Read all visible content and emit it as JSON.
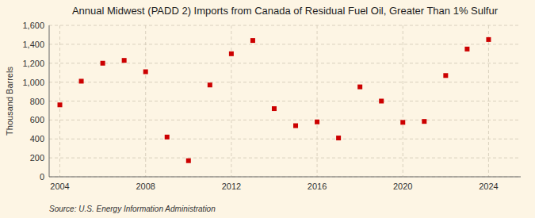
{
  "chart_data": {
    "type": "scatter",
    "title": "Annual Midwest (PADD 2) Imports from Canada of Residual Fuel Oil, Greater Than 1% Sulfur",
    "y_label": "Thousand Barrels",
    "annotation": "Source: U.S. Energy Information Administration",
    "x": [
      2004,
      2005,
      2006,
      2007,
      2008,
      2009,
      2010,
      2011,
      2012,
      2013,
      2014,
      2015,
      2016,
      2017,
      2018,
      2019,
      2020,
      2021,
      2022,
      2023,
      2024
    ],
    "values": [
      760,
      1010,
      1200,
      1230,
      1110,
      420,
      170,
      970,
      1300,
      1440,
      720,
      540,
      580,
      410,
      950,
      800,
      575,
      585,
      1070,
      1350,
      1450
    ],
    "color": "#cc0000",
    "marker": "square",
    "xlim": [
      2003.5,
      2025.5
    ],
    "xticks": [
      2004,
      2008,
      2012,
      2016,
      2020,
      2024
    ],
    "ylim": [
      0,
      1600
    ],
    "yticks": [
      0,
      200,
      400,
      600,
      800,
      {
        "value": 1000,
        "label": "1,000"
      },
      {
        "value": 1200,
        "label": "1,200"
      },
      {
        "value": 1400,
        "label": "1,400"
      },
      {
        "value": 1600,
        "label": "1,600"
      }
    ],
    "grid": true
  }
}
